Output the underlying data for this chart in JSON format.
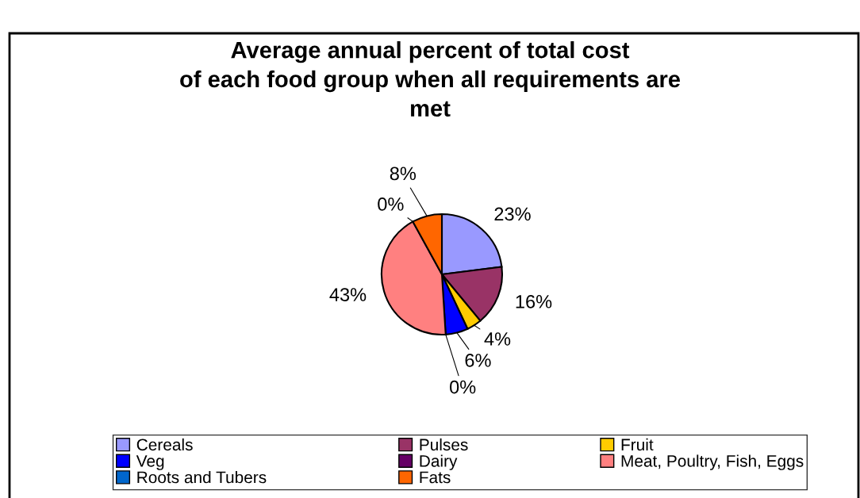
{
  "chart_data": {
    "type": "pie",
    "title": "Average annual percent of total cost\nof each food group when all requirements are\nmet",
    "categories": [
      "Cereals",
      "Pulses",
      "Fruit",
      "Veg",
      "Dairy",
      "Meat, Poultry, Fish, Eggs",
      "Roots and Tubers",
      "Fats"
    ],
    "values": [
      23,
      16,
      4,
      6,
      0,
      43,
      0,
      8
    ],
    "value_labels": [
      "23%",
      "16%",
      "4%",
      "6%",
      "0%",
      "43%",
      "0%",
      "8%"
    ],
    "colors": [
      "#9999ff",
      "#993366",
      "#ffcc00",
      "#0000ff",
      "#660066",
      "#ff8080",
      "#0066cc",
      "#ff6600"
    ],
    "legend": "bottom"
  }
}
